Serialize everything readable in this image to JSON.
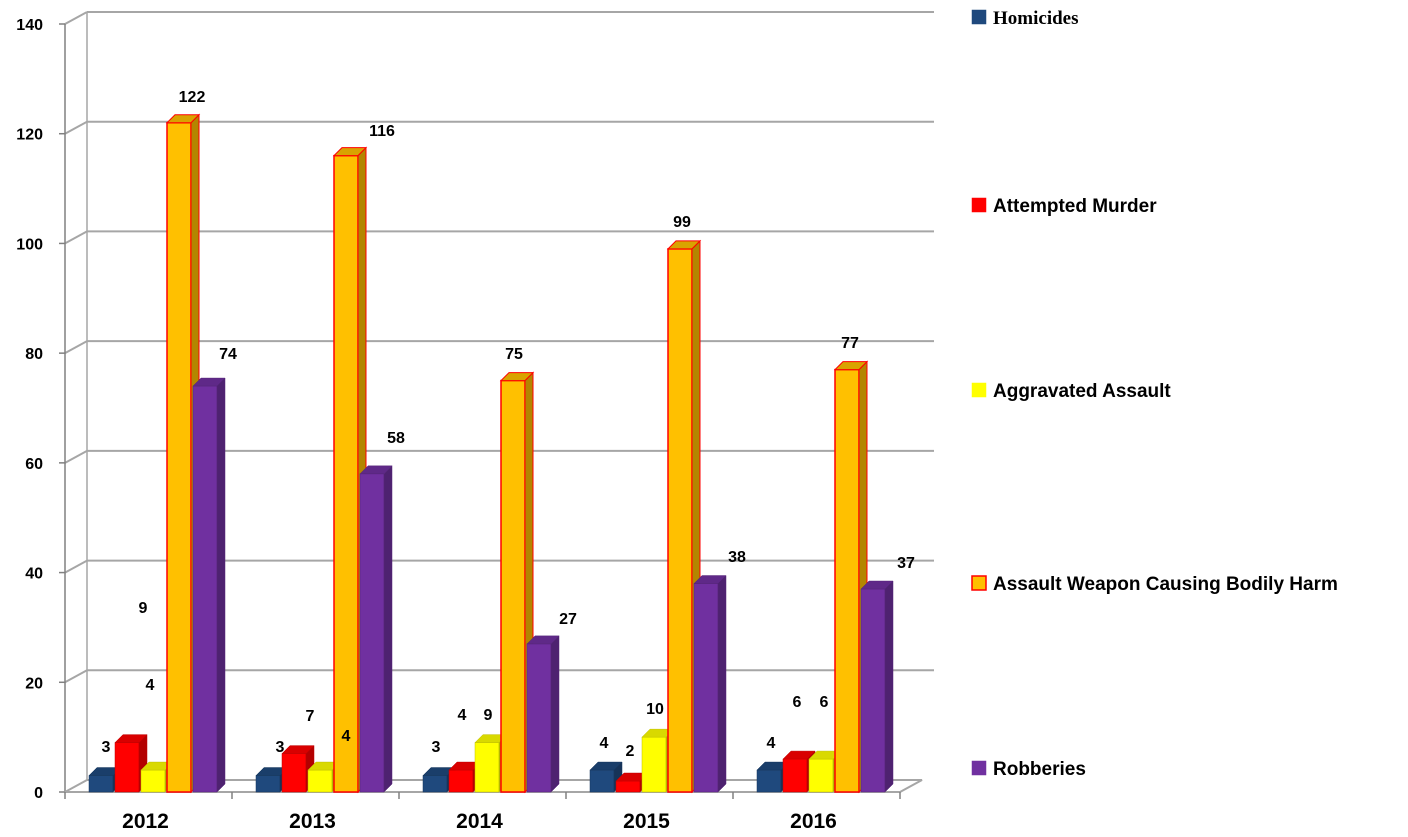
{
  "chart_data": {
    "type": "bar",
    "categories": [
      "2012",
      "2013",
      "2014",
      "2015",
      "2016"
    ],
    "ylim": [
      0,
      140
    ],
    "yticks": [
      "0",
      "20",
      "40",
      "60",
      "80",
      "100",
      "120",
      "140"
    ],
    "grid": true,
    "legend_position": "right",
    "series": [
      {
        "name": "Homicides",
        "values": [
          3,
          3,
          3,
          4,
          4
        ],
        "labels": [
          "3",
          "3",
          "3",
          "4",
          "4"
        ],
        "color": "#1F497D"
      },
      {
        "name": "Attempted Murder",
        "values": [
          9,
          7,
          4,
          2,
          6
        ],
        "labels": [
          "9",
          "7",
          "4",
          "2",
          "6"
        ],
        "color": "#FF0000"
      },
      {
        "name": "Aggravated Assault",
        "values": [
          4,
          4,
          9,
          10,
          6
        ],
        "labels": [
          "4",
          "4",
          "9",
          "10",
          "6"
        ],
        "color": "#FFFF00"
      },
      {
        "name": "Assault Weapon Causing Bodily Harm",
        "values": [
          122,
          116,
          75,
          99,
          77
        ],
        "labels": [
          "122",
          "116",
          "75",
          "99",
          "77"
        ],
        "color": "#FFC000",
        "border_color": "#FF0000"
      },
      {
        "name": "Robberies",
        "values": [
          74,
          58,
          27,
          38,
          37
        ],
        "labels": [
          "74",
          "58",
          "27",
          "38",
          "37"
        ],
        "color": "#7030A0"
      }
    ]
  }
}
